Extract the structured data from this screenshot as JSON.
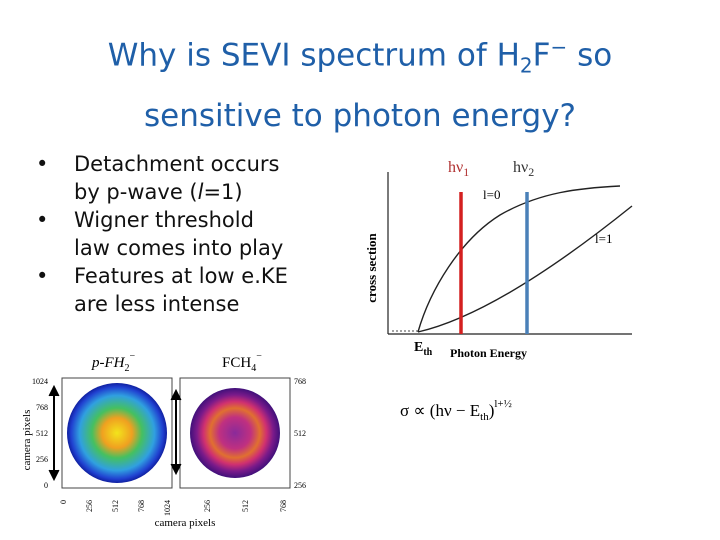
{
  "title": {
    "line1": [
      "Why is SEVI spectrum of H",
      "2",
      "F",
      "−",
      " so"
    ],
    "line2": "sensitive to photon energy?"
  },
  "bullets": [
    [
      [
        "Detachment occurs"
      ],
      [
        "by p-wave (",
        "l",
        "=1)"
      ]
    ],
    [
      [
        "Wigner threshold"
      ],
      [
        "law comes into play"
      ]
    ],
    [
      [
        "Features at low e.KE"
      ],
      [
        "are less intense"
      ]
    ]
  ],
  "plot": {
    "hv1": [
      "hν",
      "1"
    ],
    "hv2": [
      "hν",
      "2"
    ],
    "l0": "l=0",
    "l1": "l=1",
    "ylabel": "cross section",
    "eth": [
      "E",
      "th"
    ],
    "xlabel": "Photon Energy",
    "formula": [
      "σ ∝ (hν − E",
      "th",
      ")",
      "l+½"
    ]
  },
  "images": {
    "left_label": [
      "p-FH",
      "2",
      "−"
    ],
    "right_label": [
      "FCH",
      "4",
      "−"
    ],
    "xlabel": "camera pixels",
    "ylabel": "camera pixels",
    "left_yticks": [
      1024,
      768,
      512,
      256,
      0
    ],
    "right_yticks": [
      768,
      512,
      256
    ],
    "left_xticks": [
      0,
      256,
      512,
      768,
      1024
    ],
    "right_xticks": [
      256,
      512,
      768
    ]
  }
}
